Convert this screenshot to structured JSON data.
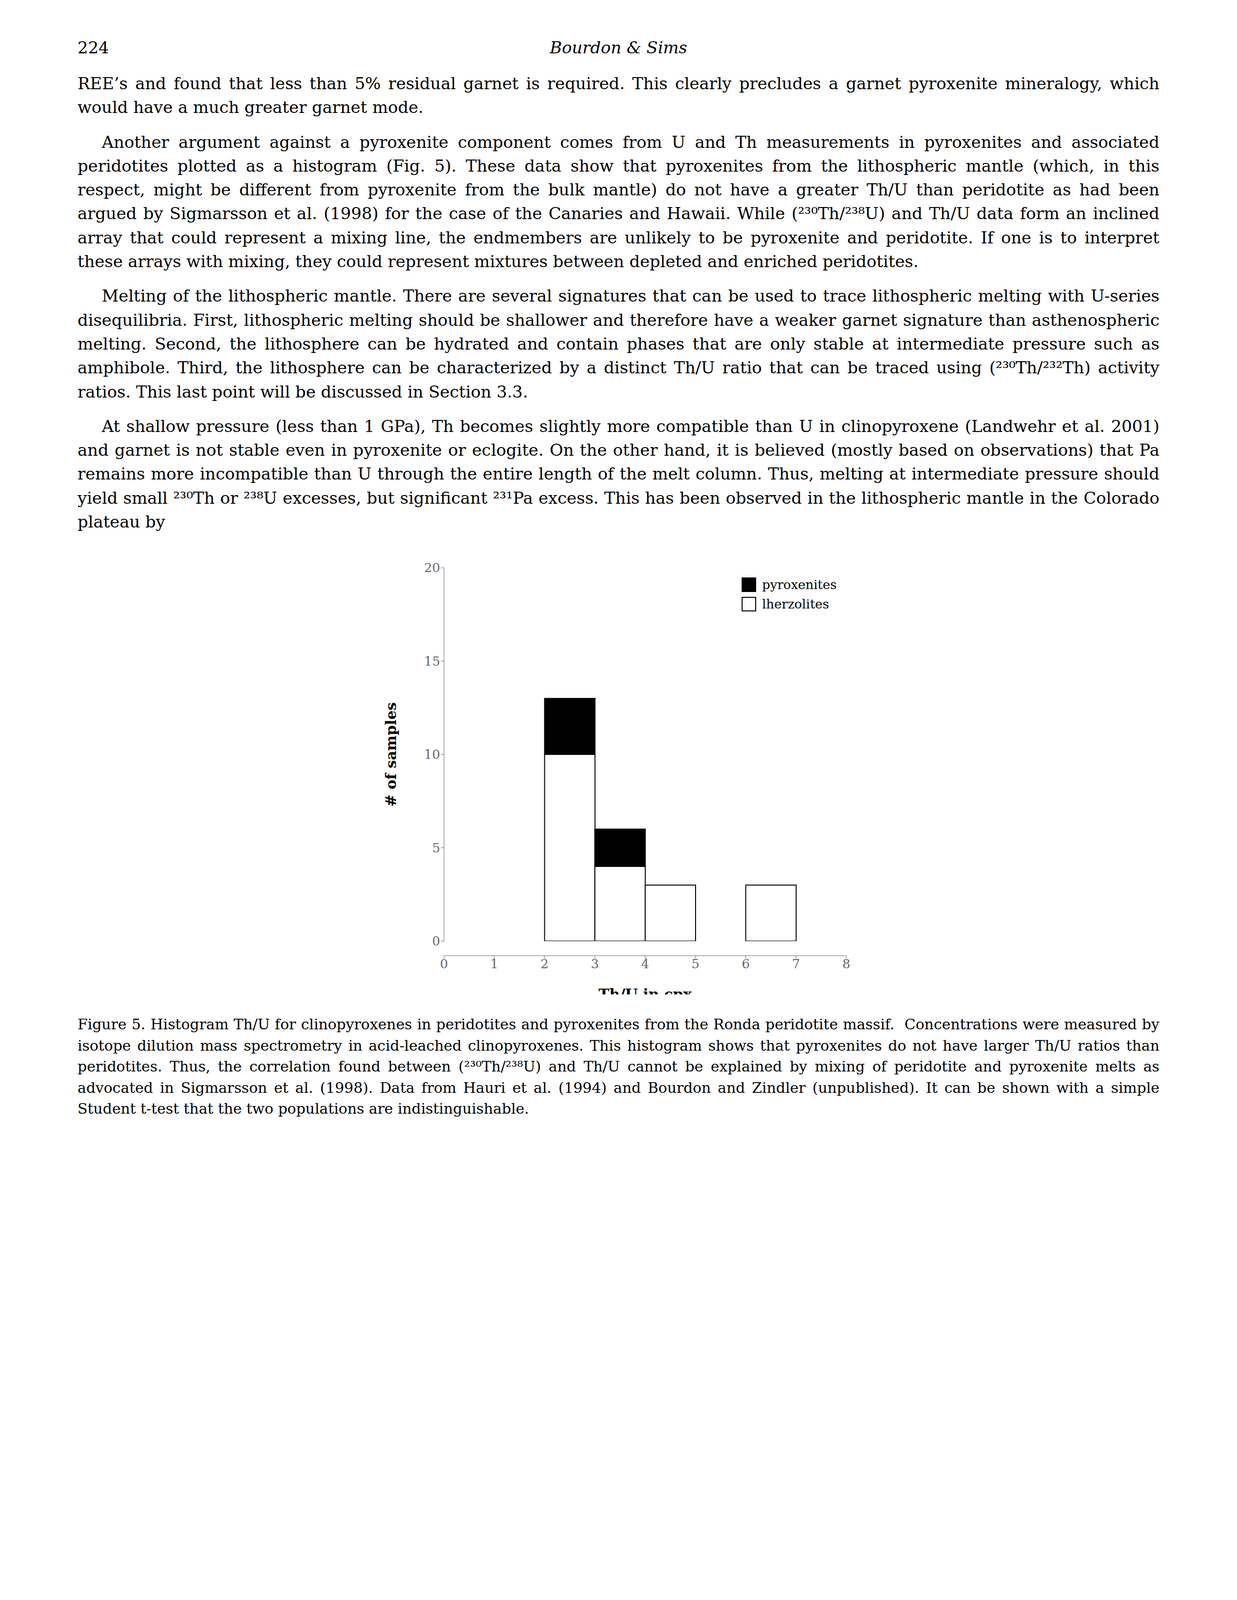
{
  "chart_data": {
    "type": "histogram",
    "xlabel": "Th/U in cpx",
    "ylabel": "# of samples",
    "bins": [
      0,
      1,
      2,
      3,
      4,
      5,
      6,
      7,
      8
    ],
    "series": [
      {
        "name": "pyroxenites",
        "color": "#000000",
        "values": [
          0,
          0,
          3,
          2,
          0,
          0,
          0,
          0
        ]
      },
      {
        "name": "lherzolites",
        "color": "#ffffff",
        "values": [
          0,
          0,
          10,
          4,
          3,
          0,
          3,
          0
        ]
      }
    ],
    "stacked": true,
    "xlim": [
      0,
      8
    ],
    "ylim": [
      0,
      20
    ],
    "xticks": [
      0,
      1,
      2,
      3,
      4,
      5,
      6,
      7,
      8
    ],
    "yticks": [
      0,
      5,
      10,
      15,
      20
    ],
    "grid": false,
    "legend": "upper right",
    "annotations": [
      "224",
      "Bourdon & Sims",
      "REE’s and found that less than 5% residual garnet is required. This clearly precludes a garnet pyroxenite mineralogy, which would have a much greater garnet mode.",
      "Another argument against a pyroxenite component comes from U and Th measurements in pyroxenites and associated peridotites plotted as a histogram (Fig. 5). These data show that pyroxenites from the lithospheric mantle (which, in this respect, might be different from pyroxenite from the bulk mantle) do not have a greater Th/U than peridotite as had been argued by Sigmarsson et al. (1998) for the case of the Canaries and Hawaii. While (²³⁰Th/²³⁸U) and Th/U data form an inclined array that could represent a mixing line, the endmembers are unlikely to be pyroxenite and peridotite. If one is to interpret these arrays with mixing, they could represent mixtures between depleted and enriched peridotites.",
      "Melting of the lithospheric mantle. There are several signatures that can be used to trace lithospheric melting with U-series disequilibria. First, lithospheric melting should be shallower and therefore have a weaker garnet signature than asthenospheric melting. Second, the lithosphere can be hydrated and contain phases that are only stable at intermediate pressure such as amphibole. Third, the lithosphere can be characterized by a distinct Th/U ratio that can be traced using (²³⁰Th/²³²Th) activity ratios. This last point will be discussed in Section 3.3.",
      "At shallow pressure (less than 1 GPa), Th becomes slightly more compatible than U in clinopyroxene (Landwehr et al. 2001) and garnet is not stable even in pyroxenite or eclogite. On the other hand, it is believed (mostly based on observations) that Pa remains more incompatible than U through the entire length of the melt column. Thus, melting at intermediate pressure should yield small ²³⁰Th or ²³⁸U excesses, but significant ²³¹Pa excess. This has been observed in the lithospheric mantle in the Colorado plateau by",
      "Figure 5. Histogram Th/U for clinopyroxenes in peridotites and pyroxenites from the Ronda peridotite massif.  Concentrations were measured by isotope dilution mass spectrometry in acid-leached clinopyroxenes. This histogram shows that pyroxenites do not have larger Th/U ratios than peridotites. Thus, the correlation found between (²³⁰Th/²³⁸U) and Th/U cannot be explained by mixing of peridotite and pyroxenite melts as advocated in Sigmarsson et al. (1998). Data from Hauri et al. (1994) and Bourdon and Zindler (unpublished). It can be shown with a simple Student t-test that the two populations are indistinguishable."
    ]
  }
}
